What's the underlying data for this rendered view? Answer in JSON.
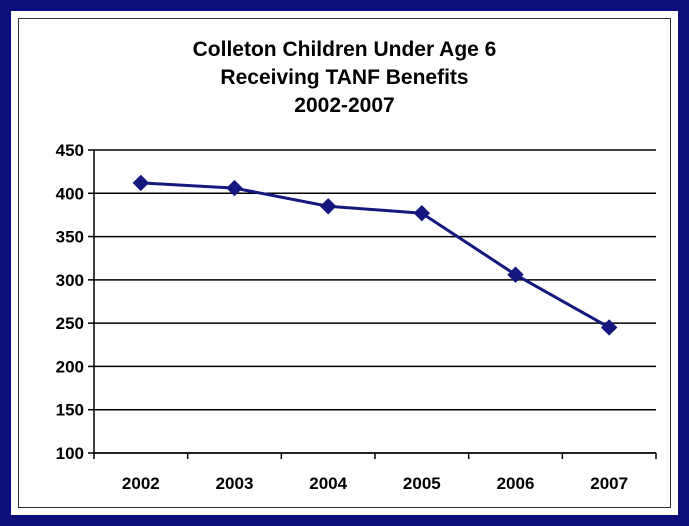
{
  "chart_data": {
    "type": "line",
    "title": [
      "Colleton Children Under Age 6",
      "Receiving TANF Benefits",
      "2002-2007"
    ],
    "xlabel": "",
    "ylabel": "",
    "categories": [
      "2002",
      "2003",
      "2004",
      "2005",
      "2006",
      "2007"
    ],
    "series": [
      {
        "values": [
          412,
          406,
          385,
          377,
          306,
          245
        ]
      }
    ],
    "ylim": [
      100,
      450
    ],
    "yticks": [
      100,
      150,
      200,
      250,
      300,
      350,
      400,
      450
    ],
    "grid": true,
    "legend": "none",
    "colors": {
      "line": "#14177e",
      "border": "#0b0d7a",
      "grid": "#000000"
    }
  }
}
